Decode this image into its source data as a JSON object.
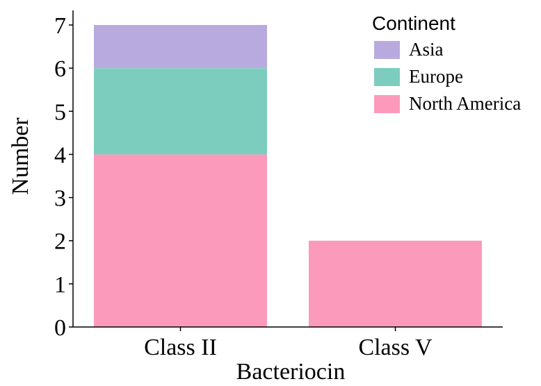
{
  "chart_data": {
    "type": "bar",
    "stacked": true,
    "categories": [
      "Class II",
      "Class V"
    ],
    "series": [
      {
        "name": "North America",
        "values": [
          4,
          2
        ],
        "color": "#fc9abc"
      },
      {
        "name": "Europe",
        "values": [
          2,
          0
        ],
        "color": "#7ccdbd"
      },
      {
        "name": "Asia",
        "values": [
          1,
          0
        ],
        "color": "#b8aade"
      }
    ],
    "xlabel": "Bacteriocin",
    "ylabel": "Number",
    "ylim": [
      0,
      7
    ],
    "yticks": [
      "0",
      "1",
      "2",
      "3",
      "4",
      "5",
      "6",
      "7"
    ],
    "legend": {
      "title": "Continent",
      "placement": "top-right",
      "order": [
        "Asia",
        "Europe",
        "North America"
      ]
    },
    "grid": false
  }
}
